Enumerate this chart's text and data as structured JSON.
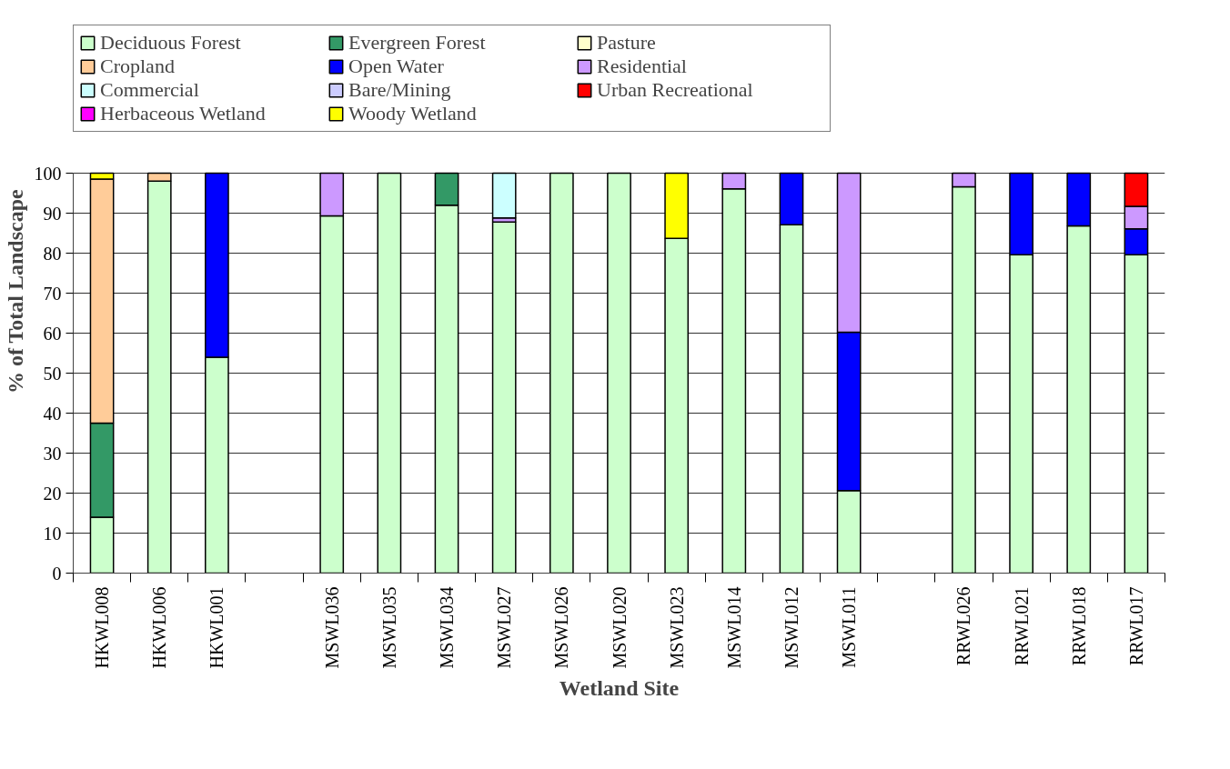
{
  "chart_data": {
    "type": "bar",
    "stacked": true,
    "xlabel": "Wetland Site",
    "ylabel": "% of Total Landscape",
    "categories": [
      "HKWL008",
      "HKWL006",
      "HKWL001",
      null,
      "MSWL036",
      "MSWL035",
      "MSWL034",
      "MSWL027",
      "MSWL026",
      "MSWL020",
      "MSWL023",
      "MSWL014",
      "MSWL012",
      "MSWL011",
      null,
      "RRWL026",
      "RRWL021",
      "RRWL018",
      "RRWL017"
    ],
    "ylim": [
      0,
      100
    ],
    "yticks": [
      0,
      10,
      20,
      30,
      40,
      50,
      60,
      70,
      80,
      90,
      100
    ],
    "grid": "y",
    "legend": "top",
    "series": [
      {
        "name": "Deciduous Forest",
        "color": "#ccffcc",
        "values": [
          14,
          98,
          54,
          null,
          89.3,
          100,
          92,
          87.8,
          100,
          100,
          83.7,
          96.1,
          87.1,
          20.6,
          null,
          96.6,
          79.6,
          86.8,
          79.6
        ]
      },
      {
        "name": "Evergreen Forest",
        "color": "#339966",
        "values": [
          23.5,
          null,
          null,
          null,
          null,
          null,
          8,
          null,
          null,
          null,
          null,
          null,
          null,
          null,
          null,
          null,
          null,
          null,
          null
        ]
      },
      {
        "name": "Pasture",
        "color": "#ffffcc",
        "values": [
          null,
          null,
          null,
          null,
          null,
          null,
          null,
          null,
          null,
          null,
          null,
          null,
          null,
          null,
          null,
          null,
          null,
          null,
          null
        ]
      },
      {
        "name": "Cropland",
        "color": "#ffcc99",
        "values": [
          61,
          2,
          null,
          null,
          null,
          null,
          null,
          null,
          null,
          null,
          null,
          null,
          null,
          null,
          null,
          null,
          null,
          null,
          null
        ]
      },
      {
        "name": "Open Water",
        "color": "#0000ff",
        "values": [
          null,
          null,
          46,
          null,
          null,
          null,
          null,
          null,
          null,
          null,
          null,
          null,
          12.9,
          39.6,
          null,
          null,
          20.4,
          13.2,
          6.5
        ]
      },
      {
        "name": "Residential",
        "color": "#cc99ff",
        "values": [
          null,
          null,
          null,
          null,
          10.7,
          null,
          null,
          1,
          null,
          null,
          null,
          3.9,
          null,
          39.8,
          null,
          3.4,
          null,
          null,
          5.6
        ]
      },
      {
        "name": "Commercial",
        "color": "#ccffff",
        "values": [
          null,
          null,
          null,
          null,
          null,
          null,
          null,
          11.2,
          null,
          null,
          null,
          null,
          null,
          null,
          null,
          null,
          null,
          null,
          null
        ]
      },
      {
        "name": "Bare/Mining",
        "color": "#ccccff",
        "values": [
          null,
          null,
          null,
          null,
          null,
          null,
          null,
          null,
          null,
          null,
          null,
          null,
          null,
          null,
          null,
          null,
          null,
          null,
          null
        ]
      },
      {
        "name": "Urban Recreational",
        "color": "#ff0000",
        "values": [
          null,
          null,
          null,
          null,
          null,
          null,
          null,
          null,
          null,
          null,
          null,
          null,
          null,
          null,
          null,
          null,
          null,
          null,
          8.3
        ]
      },
      {
        "name": "Herbaceous Wetland",
        "color": "#ff00ff",
        "values": [
          null,
          null,
          null,
          null,
          null,
          null,
          null,
          null,
          null,
          null,
          null,
          null,
          null,
          null,
          null,
          null,
          null,
          null,
          null
        ]
      },
      {
        "name": "Woody Wetland",
        "color": "#ffff00",
        "values": [
          1.5,
          null,
          null,
          null,
          null,
          null,
          null,
          null,
          null,
          null,
          16.3,
          null,
          null,
          null,
          null,
          null,
          null,
          null,
          null
        ]
      }
    ]
  }
}
